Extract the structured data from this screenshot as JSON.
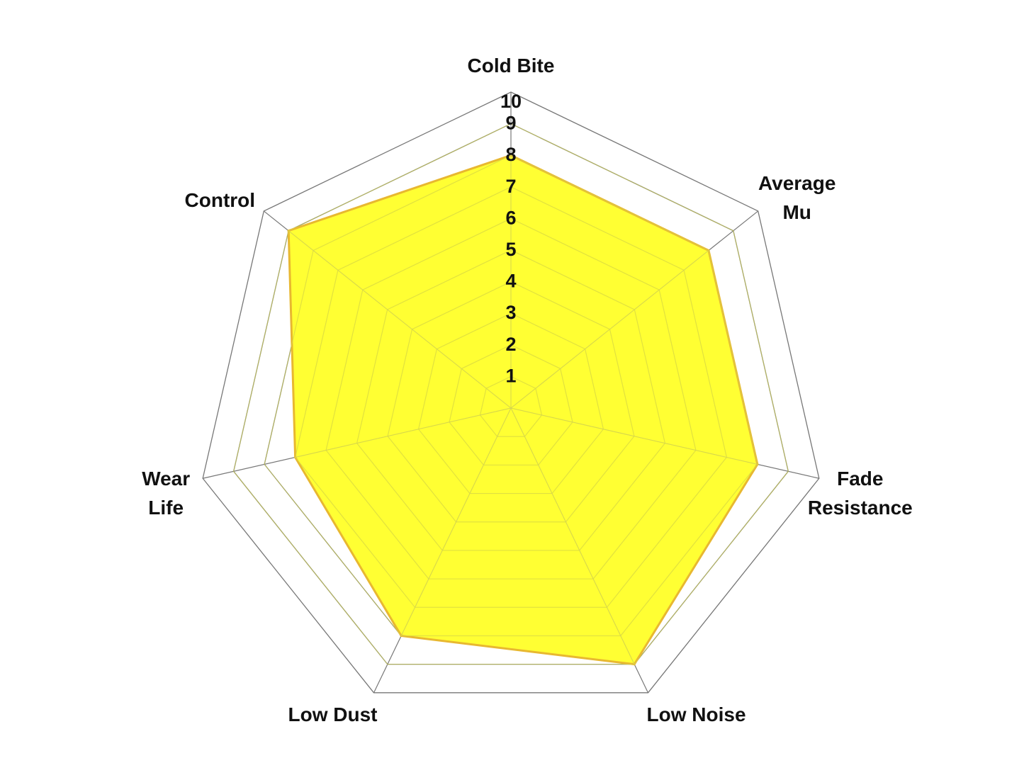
{
  "chart_data": {
    "type": "radar",
    "title": "",
    "axes": [
      "Cold Bite",
      "Average Mu",
      "Fade Resistance",
      "Low Noise",
      "Low Dust",
      "Wear Life",
      "Control"
    ],
    "axis_label_lines": [
      [
        "Cold Bite"
      ],
      [
        "Average",
        "Mu"
      ],
      [
        "Fade",
        "Resistance"
      ],
      [
        "Low Noise"
      ],
      [
        "Low Dust"
      ],
      [
        "Wear",
        "Life"
      ],
      [
        "Control"
      ]
    ],
    "values": [
      8,
      8,
      8,
      9,
      8,
      7,
      9
    ],
    "rlim": [
      0,
      10
    ],
    "ticks": [
      "1",
      "2",
      "3",
      "4",
      "5",
      "6",
      "7",
      "8",
      "9",
      "10"
    ],
    "grid": true,
    "legend": "none",
    "colors": {
      "fill": "#ffff22",
      "stroke": "#e8b830",
      "grid": "#777777",
      "inner_grid": "#d6d650"
    }
  }
}
